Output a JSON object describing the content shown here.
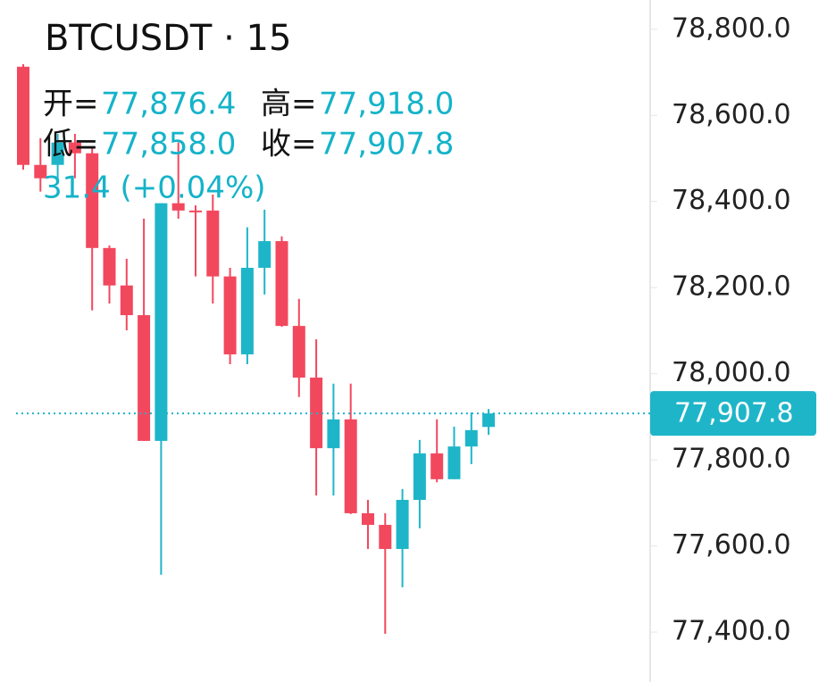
{
  "chart_data": {
    "type": "candlestick",
    "title": "BTCUSDT · 15",
    "legend": {
      "open_label": "开=",
      "open": "77,876.4",
      "high_label": "高=",
      "high": "77,918.0",
      "low_label": "低=",
      "low": "77,858.0",
      "close_label": "收=",
      "close": "77,907.8",
      "change": "31.4 (+0.04%)"
    },
    "up_color": "#1fb5c9",
    "down_color": "#f2485e",
    "candles": [
      {
        "open": 78713,
        "high": 78719,
        "low": 78474,
        "close": 78485
      },
      {
        "open": 78485,
        "high": 78547,
        "low": 78423,
        "close": 78454
      },
      {
        "open": 78485,
        "high": 78557,
        "low": 78454,
        "close": 78537
      },
      {
        "open": 78537,
        "high": 78557,
        "low": 78454,
        "close": 78512
      },
      {
        "open": 78512,
        "high": 78526,
        "low": 78147,
        "close": 78292
      },
      {
        "open": 78292,
        "high": 78298,
        "low": 78163,
        "close": 78205
      },
      {
        "open": 78205,
        "high": 78267,
        "low": 78101,
        "close": 78136
      },
      {
        "open": 78136,
        "high": 78360,
        "low": 77844,
        "close": 77844
      },
      {
        "open": 77844,
        "high": 78396,
        "low": 77533,
        "close": 78396
      },
      {
        "open": 78396,
        "high": 78537,
        "low": 78360,
        "close": 78379
      },
      {
        "open": 78379,
        "high": 78391,
        "low": 78226,
        "close": 78375
      },
      {
        "open": 78379,
        "high": 78416,
        "low": 78163,
        "close": 78226
      },
      {
        "open": 78226,
        "high": 78246,
        "low": 78022,
        "close": 78045
      },
      {
        "open": 78045,
        "high": 78340,
        "low": 78022,
        "close": 78246
      },
      {
        "open": 78246,
        "high": 78381,
        "low": 78184,
        "close": 78308
      },
      {
        "open": 78308,
        "high": 78319,
        "low": 78109,
        "close": 78111
      },
      {
        "open": 78111,
        "high": 78174,
        "low": 77946,
        "close": 77991
      },
      {
        "open": 77991,
        "high": 78080,
        "low": 77717,
        "close": 77827
      },
      {
        "open": 77827,
        "high": 77977,
        "low": 77717,
        "close": 77894
      },
      {
        "open": 77894,
        "high": 77977,
        "low": 77674,
        "close": 77676
      },
      {
        "open": 77676,
        "high": 77707,
        "low": 77593,
        "close": 77649
      },
      {
        "open": 77649,
        "high": 77676,
        "low": 77396,
        "close": 77593
      },
      {
        "open": 77593,
        "high": 77732,
        "low": 77504,
        "close": 77707
      },
      {
        "open": 77707,
        "high": 77846,
        "low": 77641,
        "close": 77815
      },
      {
        "open": 77815,
        "high": 77894,
        "low": 77748,
        "close": 77755
      },
      {
        "open": 77755,
        "high": 77877,
        "low": 77755,
        "close": 77831
      },
      {
        "open": 77831,
        "high": 77910,
        "low": 77790,
        "close": 77869
      },
      {
        "open": 77876.4,
        "high": 77918.0,
        "low": 77858.0,
        "close": 77907.8
      }
    ],
    "current_price": {
      "value": 77907.8,
      "label": "77,907.8"
    },
    "ylim": [
      77284,
      78868
    ],
    "yticks": [
      {
        "value": 78800,
        "label": "78,800.0"
      },
      {
        "value": 78600,
        "label": "78,600.0"
      },
      {
        "value": 78400,
        "label": "78,400.0"
      },
      {
        "value": 78200,
        "label": "78,200.0"
      },
      {
        "value": 78000,
        "label": "78,000.0"
      },
      {
        "value": 77800,
        "label": "77,800.0"
      },
      {
        "value": 77600,
        "label": "77,600.0"
      },
      {
        "value": 77400,
        "label": "77,400.0"
      }
    ]
  }
}
